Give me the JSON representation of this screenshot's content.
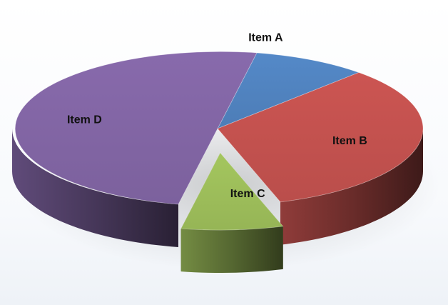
{
  "chart_data": {
    "type": "pie",
    "style": "3d-exploded",
    "title": "",
    "legend": "none",
    "slices": [
      {
        "label": "Item A",
        "value": 9,
        "color": "#4F81BD",
        "exploded": false
      },
      {
        "label": "Item B",
        "value": 33,
        "color": "#C0504D",
        "exploded": false
      },
      {
        "label": "Item C",
        "value": 8,
        "color": "#9BBB59",
        "exploded": true
      },
      {
        "label": "Item D",
        "value": 50,
        "color": "#8064A2",
        "exploded": false
      }
    ]
  }
}
